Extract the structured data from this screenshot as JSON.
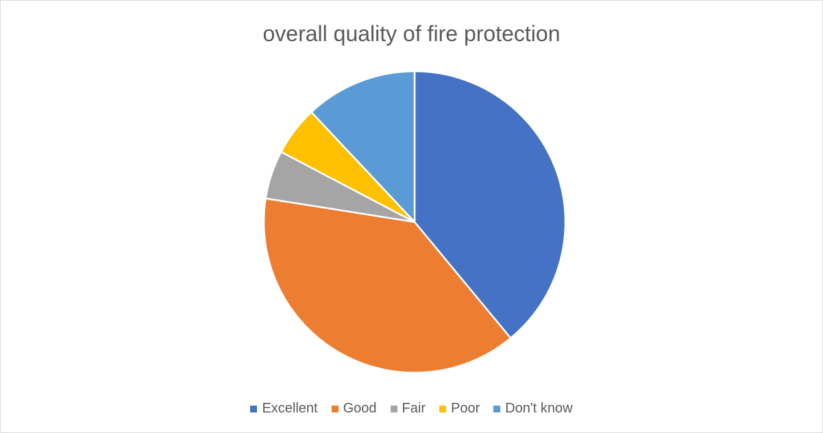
{
  "chart_data": {
    "type": "pie",
    "title": "overall quality of fire protection",
    "categories": [
      "Excellent",
      "Good",
      "Fair",
      "Poor",
      "Don't know"
    ],
    "values": [
      39,
      38.5,
      5.2,
      5.3,
      12
    ],
    "colors": [
      "#4472C4",
      "#ED7D31",
      "#A5A5A5",
      "#FFC000",
      "#5B9BD5"
    ],
    "legend_position": "bottom",
    "start_angle": "12 o'clock",
    "direction": "clockwise"
  }
}
